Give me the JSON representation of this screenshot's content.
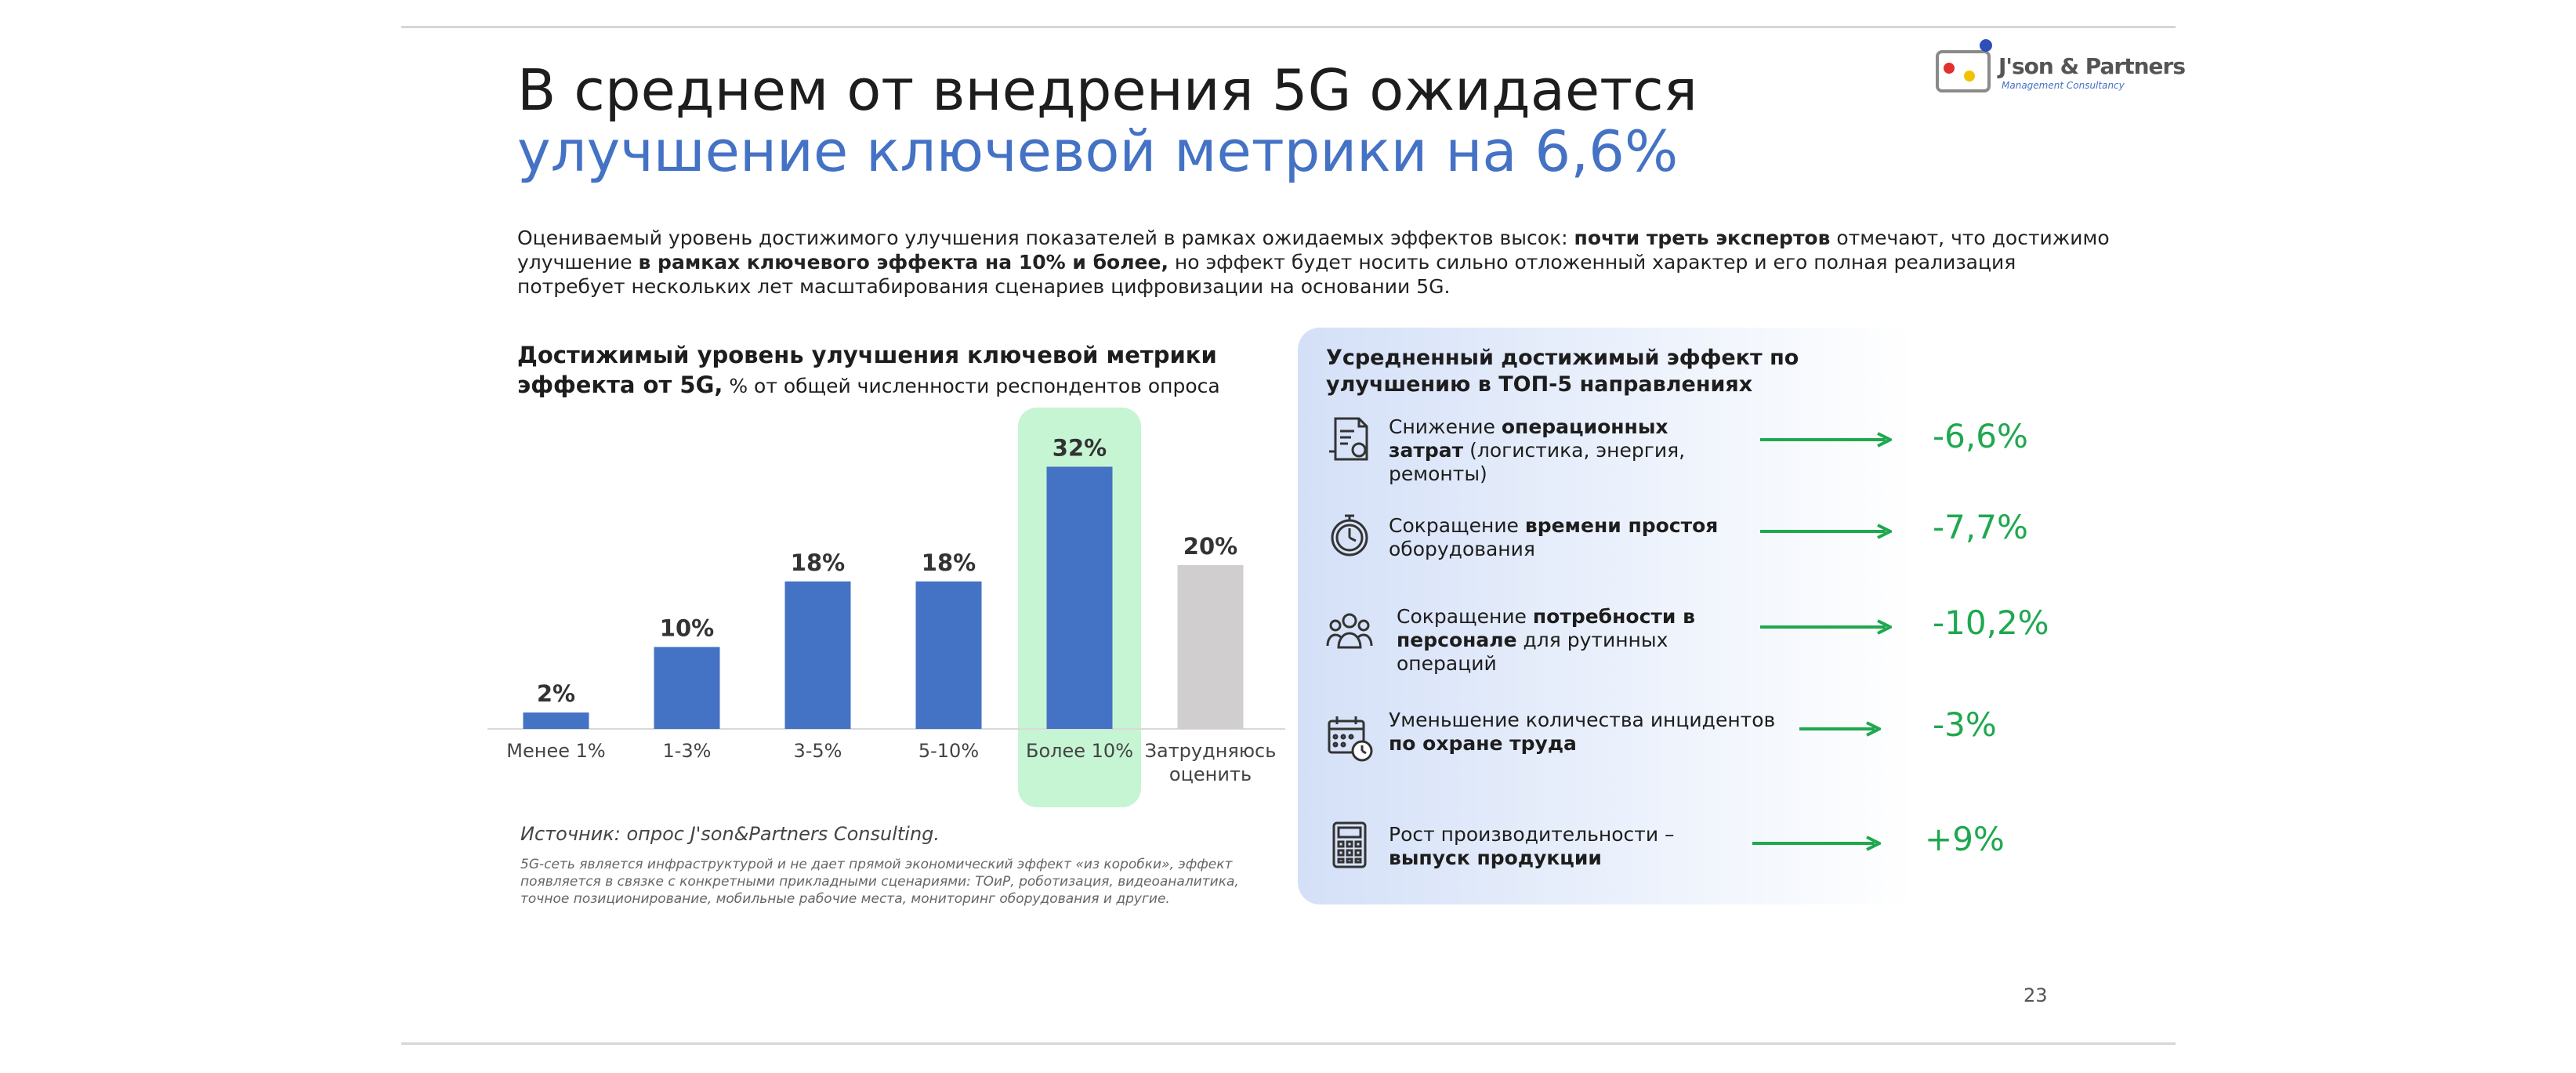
{
  "title": {
    "line1": "В среднем от внедрения 5G ожидается",
    "line2": "улучшение ключевой метрики на 6,6%"
  },
  "logo": {
    "name": "J'son & Partners",
    "subtitle": "Management Consultancy"
  },
  "intro": {
    "p1": "Оцениваемый уровень достижимого улучшения показателей в рамках ожидаемых эффектов высок: ",
    "b1": "почти треть экспертов",
    "p2": " отмечают, что достижимо улучшение ",
    "b2": "в рамках ключевого эффекта на 10% и более,",
    "p3": " но эффект будет носить сильно отложенный характер и его полная реализация потребует нескольких лет масштабирования сценариев цифровизации на основании 5G."
  },
  "chart": {
    "title_bold": "Достижимый уровень улучшения ключевой метрики эффекта от 5G,",
    "title_normal": " % от общей численности респондентов опроса"
  },
  "chart_data": {
    "type": "bar",
    "title": "Достижимый уровень улучшения ключевой метрики эффекта от 5G, % от общей численности респондентов опроса",
    "categories": [
      "Менее 1%",
      "1-3%",
      "3-5%",
      "5-10%",
      "Более 10%",
      "Затрудняюсь оценить"
    ],
    "category_lines": [
      [
        "Менее 1%"
      ],
      [
        "1-3%"
      ],
      [
        "3-5%"
      ],
      [
        "5-10%"
      ],
      [
        "Более 10%"
      ],
      [
        "Затрудняюсь",
        "оценить"
      ]
    ],
    "values": [
      2,
      10,
      18,
      18,
      32,
      20
    ],
    "data_labels": [
      "2%",
      "10%",
      "18%",
      "18%",
      "32%",
      "20%"
    ],
    "unit": "%",
    "ylim": [
      0,
      33
    ],
    "highlight_index": 4,
    "colors": {
      "bar": "#4472c4",
      "bar_unsure": "#d0cece",
      "highlight_bg": "#c6f5d4"
    },
    "grid": false,
    "legend": "none"
  },
  "source": "Источник: опрос J'son&Partners Consulting.",
  "footnote": "5G-сеть является инфраструктурой и не дает прямой экономический эффект «из коробки», эффект появляется в связке с конкретными прикладными сценариями: ТОиР, роботизация, видеоаналитика, точное позиционирование, мобильные рабочие места, мониторинг оборудования и другие.",
  "panel": {
    "title": "Усредненный достижимый эффект по улучшению в ТОП-5 направлениях",
    "rows": [
      {
        "icon": "document-invoice-icon",
        "pre": "Снижение ",
        "bold": "операционных затрат",
        "post": " (логистика, энергия, ремонты)",
        "value": "-6,6%"
      },
      {
        "icon": "stopwatch-icon",
        "pre": "Сокращение ",
        "bold": "времени простоя",
        "post": " оборудования",
        "value": "-7,7%"
      },
      {
        "icon": "people-group-icon",
        "pre": "Сокращение ",
        "bold": "потребности в персонале",
        "post": " для рутинных операций",
        "value": "-10,2%"
      },
      {
        "icon": "calendar-clock-icon",
        "pre": "Уменьшение количества инцидентов ",
        "bold": "по охране труда",
        "post": "",
        "value": "-3%"
      },
      {
        "icon": "calculator-icon",
        "pre": "Рост производительности – ",
        "bold": "выпуск продукции",
        "post": "",
        "value": "+9%"
      }
    ],
    "accent": "#1fa84f"
  },
  "page_number": "23"
}
